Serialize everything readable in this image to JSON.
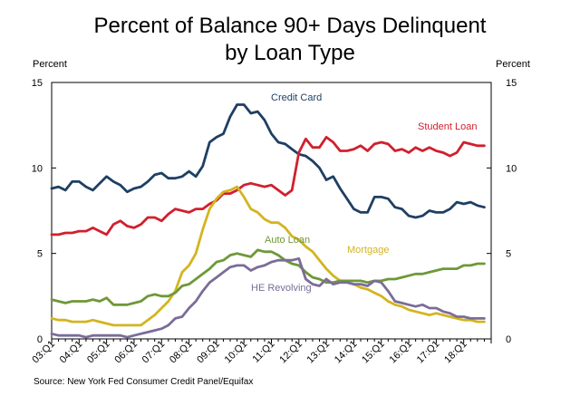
{
  "header": {
    "title_line1": "Percent of Balance 90+ Days Delinquent",
    "title_line2": "by Loan Type",
    "left_axis_unit": "Percent",
    "right_axis_unit": "Percent"
  },
  "footer": {
    "source": "Source: New York Fed Consumer Credit Panel/Equifax"
  },
  "colors": {
    "Credit Card": "#1f3f63",
    "Student Loan": "#d0202e",
    "Mortgage": "#d4b420",
    "Auto Loan": "#6e9838",
    "HE Revolving": "#7b6c98"
  },
  "chart_data": {
    "type": "line",
    "title": "Percent of Balance 90+ Days Delinquent by Loan Type",
    "xlabel": "",
    "ylabel": "Percent",
    "ylim": [
      0,
      15
    ],
    "yticks": [
      0,
      5,
      10,
      15
    ],
    "grid": false,
    "x_tick_labels": [
      "03:Q1",
      "04:Q1",
      "05:Q1",
      "06:Q1",
      "07:Q1",
      "08:Q1",
      "09:Q1",
      "10:Q1",
      "11:Q1",
      "12:Q1",
      "13:Q1",
      "14:Q1",
      "15:Q1",
      "16:Q1",
      "17:Q1",
      "18:Q1"
    ],
    "x_start_year": 2003,
    "x_end": "2018:Q4",
    "series": [
      {
        "name": "Credit Card",
        "values": [
          8.8,
          8.9,
          8.7,
          9.2,
          9.2,
          8.9,
          8.7,
          9.1,
          9.5,
          9.2,
          9.0,
          8.6,
          8.8,
          8.9,
          9.2,
          9.6,
          9.7,
          9.4,
          9.4,
          9.5,
          9.8,
          9.5,
          10.1,
          11.5,
          11.8,
          12.0,
          13.0,
          13.7,
          13.7,
          13.2,
          13.3,
          12.8,
          12.0,
          11.5,
          11.4,
          11.1,
          10.8,
          10.7,
          10.4,
          10.0,
          9.3,
          9.5,
          8.8,
          8.2,
          7.6,
          7.4,
          7.4,
          8.3,
          8.3,
          8.2,
          7.7,
          7.6,
          7.2,
          7.1,
          7.2,
          7.5,
          7.4,
          7.4,
          7.6,
          8.0,
          7.9,
          8.0,
          7.8,
          7.7
        ]
      },
      {
        "name": "Student Loan",
        "values": [
          6.1,
          6.1,
          6.2,
          6.2,
          6.3,
          6.3,
          6.5,
          6.3,
          6.1,
          6.7,
          6.9,
          6.6,
          6.5,
          6.7,
          7.1,
          7.1,
          6.9,
          7.3,
          7.6,
          7.5,
          7.4,
          7.6,
          7.6,
          7.9,
          8.1,
          8.5,
          8.5,
          8.7,
          9.0,
          9.1,
          9.0,
          8.9,
          9.0,
          8.7,
          8.4,
          8.7,
          10.9,
          11.7,
          11.2,
          11.2,
          11.8,
          11.5,
          11.0,
          11.0,
          11.1,
          11.3,
          11.0,
          11.4,
          11.5,
          11.4,
          11.0,
          11.1,
          10.9,
          11.2,
          11.0,
          11.2,
          11.0,
          10.9,
          10.7,
          10.9,
          11.5,
          11.4,
          11.3,
          11.3
        ]
      },
      {
        "name": "Mortgage",
        "values": [
          1.2,
          1.1,
          1.1,
          1.0,
          1.0,
          1.0,
          1.1,
          1.0,
          0.9,
          0.8,
          0.8,
          0.8,
          0.8,
          0.8,
          1.1,
          1.4,
          1.8,
          2.2,
          2.8,
          3.9,
          4.3,
          5.0,
          6.4,
          7.6,
          8.2,
          8.6,
          8.7,
          8.9,
          8.3,
          7.6,
          7.4,
          7.0,
          6.8,
          6.8,
          6.5,
          6.0,
          5.8,
          5.4,
          5.1,
          4.6,
          4.1,
          3.7,
          3.4,
          3.3,
          3.2,
          3.0,
          2.9,
          2.7,
          2.5,
          2.2,
          2.0,
          1.9,
          1.7,
          1.6,
          1.5,
          1.4,
          1.5,
          1.4,
          1.3,
          1.2,
          1.1,
          1.1,
          1.0,
          1.0
        ]
      },
      {
        "name": "Auto Loan",
        "values": [
          2.3,
          2.2,
          2.1,
          2.2,
          2.2,
          2.2,
          2.3,
          2.2,
          2.4,
          2.0,
          2.0,
          2.0,
          2.1,
          2.2,
          2.5,
          2.6,
          2.5,
          2.5,
          2.7,
          3.1,
          3.2,
          3.5,
          3.8,
          4.1,
          4.5,
          4.6,
          4.9,
          5.0,
          4.9,
          4.8,
          5.2,
          5.1,
          5.1,
          4.9,
          4.6,
          4.4,
          4.3,
          3.9,
          3.6,
          3.5,
          3.3,
          3.3,
          3.4,
          3.4,
          3.4,
          3.4,
          3.3,
          3.4,
          3.4,
          3.5,
          3.5,
          3.6,
          3.7,
          3.8,
          3.8,
          3.9,
          4.0,
          4.1,
          4.1,
          4.1,
          4.3,
          4.3,
          4.4,
          4.4
        ]
      },
      {
        "name": "HE Revolving",
        "values": [
          0.3,
          0.2,
          0.2,
          0.2,
          0.2,
          0.1,
          0.2,
          0.2,
          0.2,
          0.2,
          0.2,
          0.1,
          0.2,
          0.3,
          0.4,
          0.5,
          0.6,
          0.8,
          1.2,
          1.3,
          1.8,
          2.2,
          2.8,
          3.3,
          3.6,
          3.9,
          4.2,
          4.3,
          4.3,
          4.0,
          4.2,
          4.3,
          4.5,
          4.6,
          4.6,
          4.6,
          4.7,
          3.5,
          3.2,
          3.1,
          3.5,
          3.2,
          3.3,
          3.3,
          3.2,
          3.2,
          3.1,
          3.4,
          3.3,
          2.8,
          2.2,
          2.1,
          2.0,
          1.9,
          2.0,
          1.8,
          1.8,
          1.6,
          1.5,
          1.3,
          1.3,
          1.2,
          1.2,
          1.2
        ]
      }
    ],
    "annotations": [
      {
        "text": "Credit Card",
        "series": "Credit Card"
      },
      {
        "text": "Student Loan",
        "series": "Student Loan"
      },
      {
        "text": "Auto Loan",
        "series": "Auto Loan"
      },
      {
        "text": "Mortgage",
        "series": "Mortgage"
      },
      {
        "text": "HE Revolving",
        "series": "HE Revolving"
      }
    ]
  }
}
